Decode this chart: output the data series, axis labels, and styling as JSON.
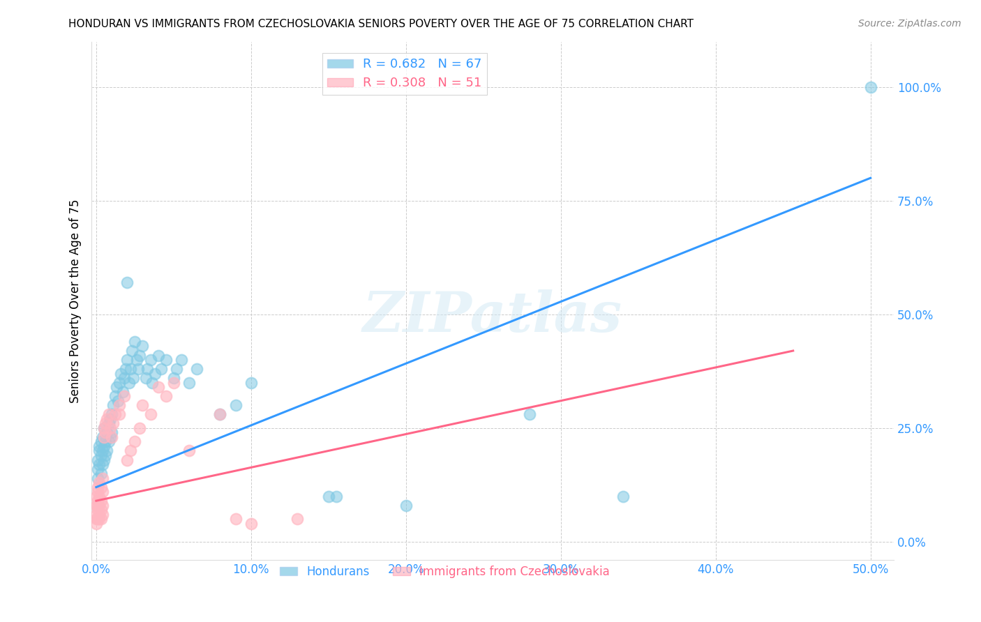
{
  "title": "HONDURAN VS IMMIGRANTS FROM CZECHOSLOVAKIA SENIORS POVERTY OVER THE AGE OF 75 CORRELATION CHART",
  "source": "Source: ZipAtlas.com",
  "xlabel_ticks": [
    "0.0%",
    "10.0%",
    "20.0%",
    "30.0%",
    "40.0%",
    "50.0%"
  ],
  "xlabel_tick_vals": [
    0,
    0.1,
    0.2,
    0.3,
    0.4,
    0.5
  ],
  "ylabel": "Seniors Poverty Over the Age of 75",
  "ylabel_ticks": [
    "0.0%",
    "25.0%",
    "50.0%",
    "75.0%",
    "100.0%"
  ],
  "ylabel_tick_vals": [
    0,
    0.25,
    0.5,
    0.75,
    1.0
  ],
  "xlim": [
    -0.003,
    0.515
  ],
  "ylim": [
    -0.04,
    1.1
  ],
  "legend1_r": "0.682",
  "legend1_n": "67",
  "legend2_r": "0.308",
  "legend2_n": "51",
  "blue_color": "#7ec8e3",
  "pink_color": "#ffb6c1",
  "blue_line_color": "#3399ff",
  "pink_line_color": "#ff6688",
  "watermark": "ZIPatlas",
  "blue_scatter": [
    [
      0.001,
      0.16
    ],
    [
      0.001,
      0.18
    ],
    [
      0.001,
      0.14
    ],
    [
      0.002,
      0.2
    ],
    [
      0.002,
      0.17
    ],
    [
      0.002,
      0.21
    ],
    [
      0.003,
      0.19
    ],
    [
      0.003,
      0.22
    ],
    [
      0.003,
      0.15
    ],
    [
      0.004,
      0.2
    ],
    [
      0.004,
      0.17
    ],
    [
      0.004,
      0.23
    ],
    [
      0.005,
      0.21
    ],
    [
      0.005,
      0.18
    ],
    [
      0.005,
      0.25
    ],
    [
      0.006,
      0.22
    ],
    [
      0.006,
      0.19
    ],
    [
      0.007,
      0.24
    ],
    [
      0.007,
      0.2
    ],
    [
      0.008,
      0.26
    ],
    [
      0.008,
      0.22
    ],
    [
      0.009,
      0.27
    ],
    [
      0.009,
      0.23
    ],
    [
      0.01,
      0.28
    ],
    [
      0.01,
      0.24
    ],
    [
      0.011,
      0.3
    ],
    [
      0.012,
      0.32
    ],
    [
      0.013,
      0.34
    ],
    [
      0.014,
      0.31
    ],
    [
      0.015,
      0.35
    ],
    [
      0.016,
      0.37
    ],
    [
      0.017,
      0.33
    ],
    [
      0.018,
      0.36
    ],
    [
      0.019,
      0.38
    ],
    [
      0.02,
      0.4
    ],
    [
      0.021,
      0.35
    ],
    [
      0.022,
      0.38
    ],
    [
      0.023,
      0.42
    ],
    [
      0.024,
      0.36
    ],
    [
      0.025,
      0.44
    ],
    [
      0.026,
      0.4
    ],
    [
      0.027,
      0.38
    ],
    [
      0.028,
      0.41
    ],
    [
      0.03,
      0.43
    ],
    [
      0.032,
      0.36
    ],
    [
      0.033,
      0.38
    ],
    [
      0.035,
      0.4
    ],
    [
      0.036,
      0.35
    ],
    [
      0.038,
      0.37
    ],
    [
      0.04,
      0.41
    ],
    [
      0.042,
      0.38
    ],
    [
      0.045,
      0.4
    ],
    [
      0.05,
      0.36
    ],
    [
      0.052,
      0.38
    ],
    [
      0.055,
      0.4
    ],
    [
      0.06,
      0.35
    ],
    [
      0.065,
      0.38
    ],
    [
      0.02,
      0.57
    ],
    [
      0.08,
      0.28
    ],
    [
      0.09,
      0.3
    ],
    [
      0.1,
      0.35
    ],
    [
      0.15,
      0.1
    ],
    [
      0.155,
      0.1
    ],
    [
      0.2,
      0.08
    ],
    [
      0.28,
      0.28
    ],
    [
      0.34,
      0.1
    ],
    [
      0.5,
      1.0
    ]
  ],
  "pink_scatter": [
    [
      0.0,
      0.05
    ],
    [
      0.0,
      0.08
    ],
    [
      0.0,
      0.1
    ],
    [
      0.0,
      0.04
    ],
    [
      0.0,
      0.06
    ],
    [
      0.001,
      0.12
    ],
    [
      0.001,
      0.07
    ],
    [
      0.001,
      0.09
    ],
    [
      0.001,
      0.05
    ],
    [
      0.001,
      0.11
    ],
    [
      0.001,
      0.08
    ],
    [
      0.002,
      0.13
    ],
    [
      0.002,
      0.08
    ],
    [
      0.002,
      0.06
    ],
    [
      0.002,
      0.1
    ],
    [
      0.002,
      0.05
    ],
    [
      0.003,
      0.12
    ],
    [
      0.003,
      0.07
    ],
    [
      0.003,
      0.05
    ],
    [
      0.003,
      0.09
    ],
    [
      0.004,
      0.14
    ],
    [
      0.004,
      0.06
    ],
    [
      0.004,
      0.08
    ],
    [
      0.004,
      0.11
    ],
    [
      0.005,
      0.25
    ],
    [
      0.005,
      0.23
    ],
    [
      0.006,
      0.26
    ],
    [
      0.006,
      0.24
    ],
    [
      0.007,
      0.27
    ],
    [
      0.008,
      0.28
    ],
    [
      0.009,
      0.25
    ],
    [
      0.01,
      0.23
    ],
    [
      0.011,
      0.26
    ],
    [
      0.012,
      0.28
    ],
    [
      0.015,
      0.3
    ],
    [
      0.015,
      0.28
    ],
    [
      0.018,
      0.32
    ],
    [
      0.02,
      0.18
    ],
    [
      0.022,
      0.2
    ],
    [
      0.025,
      0.22
    ],
    [
      0.028,
      0.25
    ],
    [
      0.03,
      0.3
    ],
    [
      0.035,
      0.28
    ],
    [
      0.04,
      0.34
    ],
    [
      0.045,
      0.32
    ],
    [
      0.05,
      0.35
    ],
    [
      0.06,
      0.2
    ],
    [
      0.08,
      0.28
    ],
    [
      0.09,
      0.05
    ],
    [
      0.1,
      0.04
    ],
    [
      0.13,
      0.05
    ]
  ]
}
